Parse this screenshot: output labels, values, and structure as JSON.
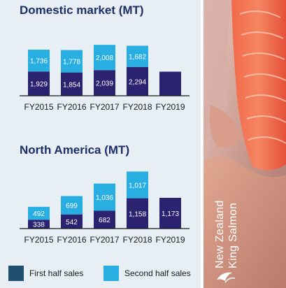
{
  "chart_data": [
    {
      "type": "bar",
      "stacked": true,
      "title": "Domestic market (MT)",
      "categories": [
        "FY2015",
        "FY2016",
        "FY2017",
        "FY2018",
        "FY2019"
      ],
      "series": [
        {
          "name": "First half sales",
          "color": "#2b2270",
          "values": [
            1929,
            1854,
            2039,
            2294,
            1915
          ],
          "labels": [
            "1,929",
            "1,854",
            "2,039",
            "2,294",
            "1,915"
          ]
        },
        {
          "name": "Second half sales",
          "color": "#29aee2",
          "values": [
            1736,
            1778,
            2008,
            1682,
            null
          ],
          "labels": [
            "1,736",
            "1,778",
            "2,008",
            "1,682",
            ""
          ]
        }
      ],
      "data_labels": "first half labels shown except FY2019",
      "show_first_labels": [
        true,
        true,
        true,
        true,
        false
      ],
      "grid": false
    },
    {
      "type": "bar",
      "stacked": true,
      "title": "North America (MT)",
      "categories": [
        "FY2015",
        "FY2016",
        "FY2017",
        "FY2018",
        "FY2019"
      ],
      "series": [
        {
          "name": "First half sales",
          "color": "#2b2270",
          "values": [
            338,
            542,
            682,
            1158,
            1173
          ],
          "labels": [
            "338",
            "542",
            "682",
            "1,158",
            "1,173"
          ]
        },
        {
          "name": "Second half sales",
          "color": "#29aee2",
          "values": [
            492,
            699,
            1036,
            1017,
            null
          ],
          "labels": [
            "492",
            "699",
            "1,036",
            "1,017",
            ""
          ]
        }
      ],
      "show_first_labels": [
        true,
        true,
        true,
        true,
        true
      ],
      "grid": false
    }
  ],
  "legend": {
    "position": "bottom",
    "items": [
      {
        "label": "First half sales",
        "color": "#1f4f6e"
      },
      {
        "label": "Second half sales",
        "color": "#29aee2"
      }
    ]
  },
  "brand": {
    "line1": "New Zealand",
    "line2": "King Salmon"
  }
}
